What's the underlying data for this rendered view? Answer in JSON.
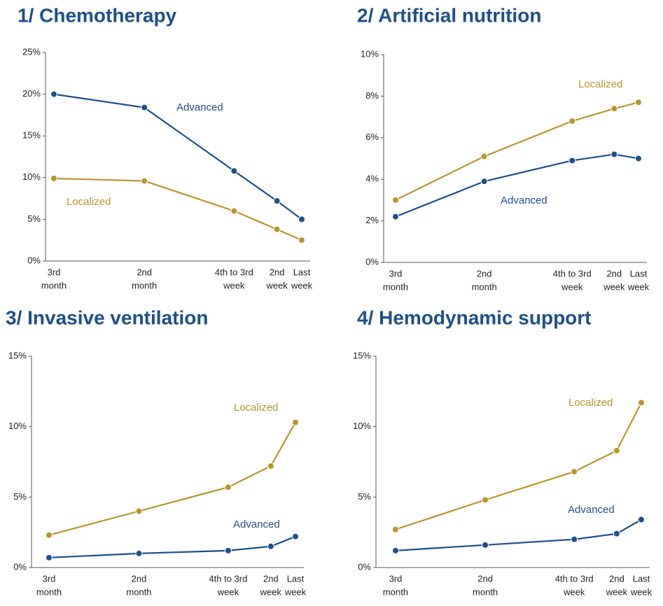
{
  "chart_data": [
    {
      "type": "line",
      "title": "1/ Chemotherapy",
      "categories": [
        [
          "3rd",
          "month"
        ],
        [
          "2nd",
          "month"
        ],
        [
          "4th to 3rd",
          "week"
        ],
        [
          "2nd",
          "week"
        ],
        [
          "Last",
          "week"
        ]
      ],
      "series": [
        {
          "name": "Advanced",
          "color": "#1f4e8c",
          "values": [
            20,
            18.4,
            10.8,
            7.2,
            5.0
          ]
        },
        {
          "name": "Localized",
          "color": "#b8962e",
          "values": [
            9.9,
            9.6,
            6.0,
            3.8,
            2.5
          ]
        }
      ],
      "ylim": [
        0,
        25
      ],
      "yticks": [
        {
          "value": 0,
          "label": "0%"
        },
        {
          "value": 5,
          "label": "5%"
        },
        {
          "value": 10,
          "label": "10%"
        },
        {
          "value": 15,
          "label": "15%"
        },
        {
          "value": 20,
          "label": "20%"
        },
        {
          "value": 25,
          "label": "25%"
        }
      ]
    },
    {
      "type": "line",
      "title": "2/ Artificial nutrition",
      "categories": [
        [
          "3rd",
          "month"
        ],
        [
          "2nd",
          "month"
        ],
        [
          "4th to 3rd",
          "week"
        ],
        [
          "2nd",
          "week"
        ],
        [
          "Last",
          "week"
        ]
      ],
      "series": [
        {
          "name": "Localized",
          "color": "#b8962e",
          "values": [
            3.0,
            5.1,
            6.8,
            7.4,
            7.7
          ]
        },
        {
          "name": "Advanced",
          "color": "#1f4e8c",
          "values": [
            2.2,
            3.9,
            4.9,
            5.2,
            5.0
          ]
        }
      ],
      "ylim": [
        0,
        10
      ],
      "yticks": [
        {
          "value": 0,
          "label": "0%"
        },
        {
          "value": 2,
          "label": "2%"
        },
        {
          "value": 4,
          "label": "4%"
        },
        {
          "value": 6,
          "label": "6%"
        },
        {
          "value": 8,
          "label": "8%"
        },
        {
          "value": 10,
          "label": "10%"
        }
      ]
    },
    {
      "type": "line",
      "title": "3/ Invasive ventilation",
      "categories": [
        [
          "3rd",
          "month"
        ],
        [
          "2nd",
          "month"
        ],
        [
          "4th to 3rd",
          "week"
        ],
        [
          "2nd",
          "week"
        ],
        [
          "Last",
          "week"
        ]
      ],
      "series": [
        {
          "name": "Localized",
          "color": "#b8962e",
          "values": [
            2.3,
            4.0,
            5.7,
            7.2,
            10.3
          ]
        },
        {
          "name": "Advanced",
          "color": "#1f4e8c",
          "values": [
            0.7,
            1.0,
            1.2,
            1.5,
            2.2
          ]
        }
      ],
      "ylim": [
        0,
        15
      ],
      "yticks": [
        {
          "value": 0,
          "label": "0%"
        },
        {
          "value": 5,
          "label": "5%"
        },
        {
          "value": 10,
          "label": "10%"
        },
        {
          "value": 15,
          "label": "15%"
        }
      ]
    },
    {
      "type": "line",
      "title": "4/ Hemodynamic support",
      "categories": [
        [
          "3rd",
          "month"
        ],
        [
          "2nd",
          "month"
        ],
        [
          "4th to 3rd",
          "week"
        ],
        [
          "2nd",
          "week"
        ],
        [
          "Last",
          "week"
        ]
      ],
      "series": [
        {
          "name": "Localized",
          "color": "#b8962e",
          "values": [
            2.7,
            4.8,
            6.8,
            8.3,
            11.7
          ]
        },
        {
          "name": "Advanced",
          "color": "#1f4e8c",
          "values": [
            1.2,
            1.6,
            2.0,
            2.4,
            3.4
          ]
        }
      ],
      "ylim": [
        0,
        15
      ],
      "yticks": [
        {
          "value": 0,
          "label": "0%"
        },
        {
          "value": 5,
          "label": "5%"
        },
        {
          "value": 10,
          "label": "10%"
        },
        {
          "value": 15,
          "label": "15%"
        }
      ]
    }
  ]
}
